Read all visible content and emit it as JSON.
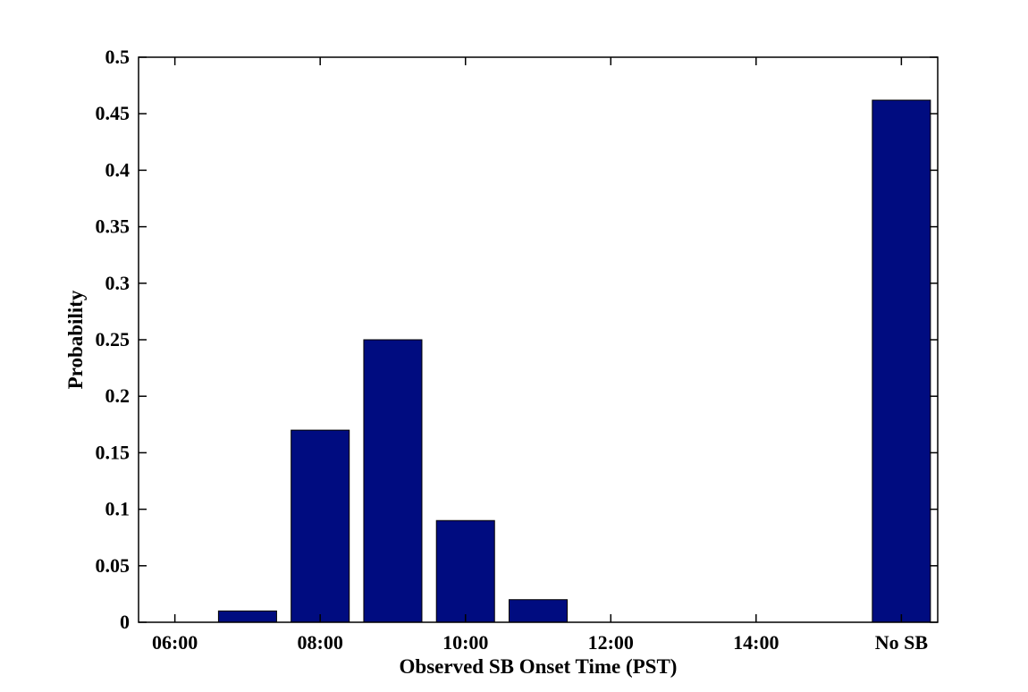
{
  "chart_data": {
    "type": "bar",
    "title": "",
    "xlabel": "Observed SB Onset Time (PST)",
    "ylabel": "Probability",
    "categories": [
      "06:00",
      "07:00",
      "08:00",
      "09:00",
      "10:00",
      "11:00",
      "12:00",
      "13:00",
      "14:00",
      "15:00",
      "No SB"
    ],
    "values": [
      0,
      0.01,
      0.17,
      0.25,
      0.09,
      0.02,
      0,
      0,
      0,
      0,
      0.462
    ],
    "xtick_labels": [
      "06:00",
      "08:00",
      "10:00",
      "12:00",
      "14:00",
      "No SB"
    ],
    "xtick_indices": [
      0,
      2,
      4,
      6,
      8,
      10
    ],
    "ylim": [
      0,
      0.5
    ],
    "yticks": [
      0,
      0.05,
      0.1,
      0.15,
      0.2,
      0.25,
      0.3,
      0.35,
      0.4,
      0.45,
      0.5
    ],
    "ytick_labels": [
      "0",
      "0.05",
      "0.1",
      "0.15",
      "0.2",
      "0.25",
      "0.3",
      "0.35",
      "0.4",
      "0.45",
      "0.5"
    ],
    "bar_color": "#000c80",
    "grid": false,
    "legend": "none"
  }
}
